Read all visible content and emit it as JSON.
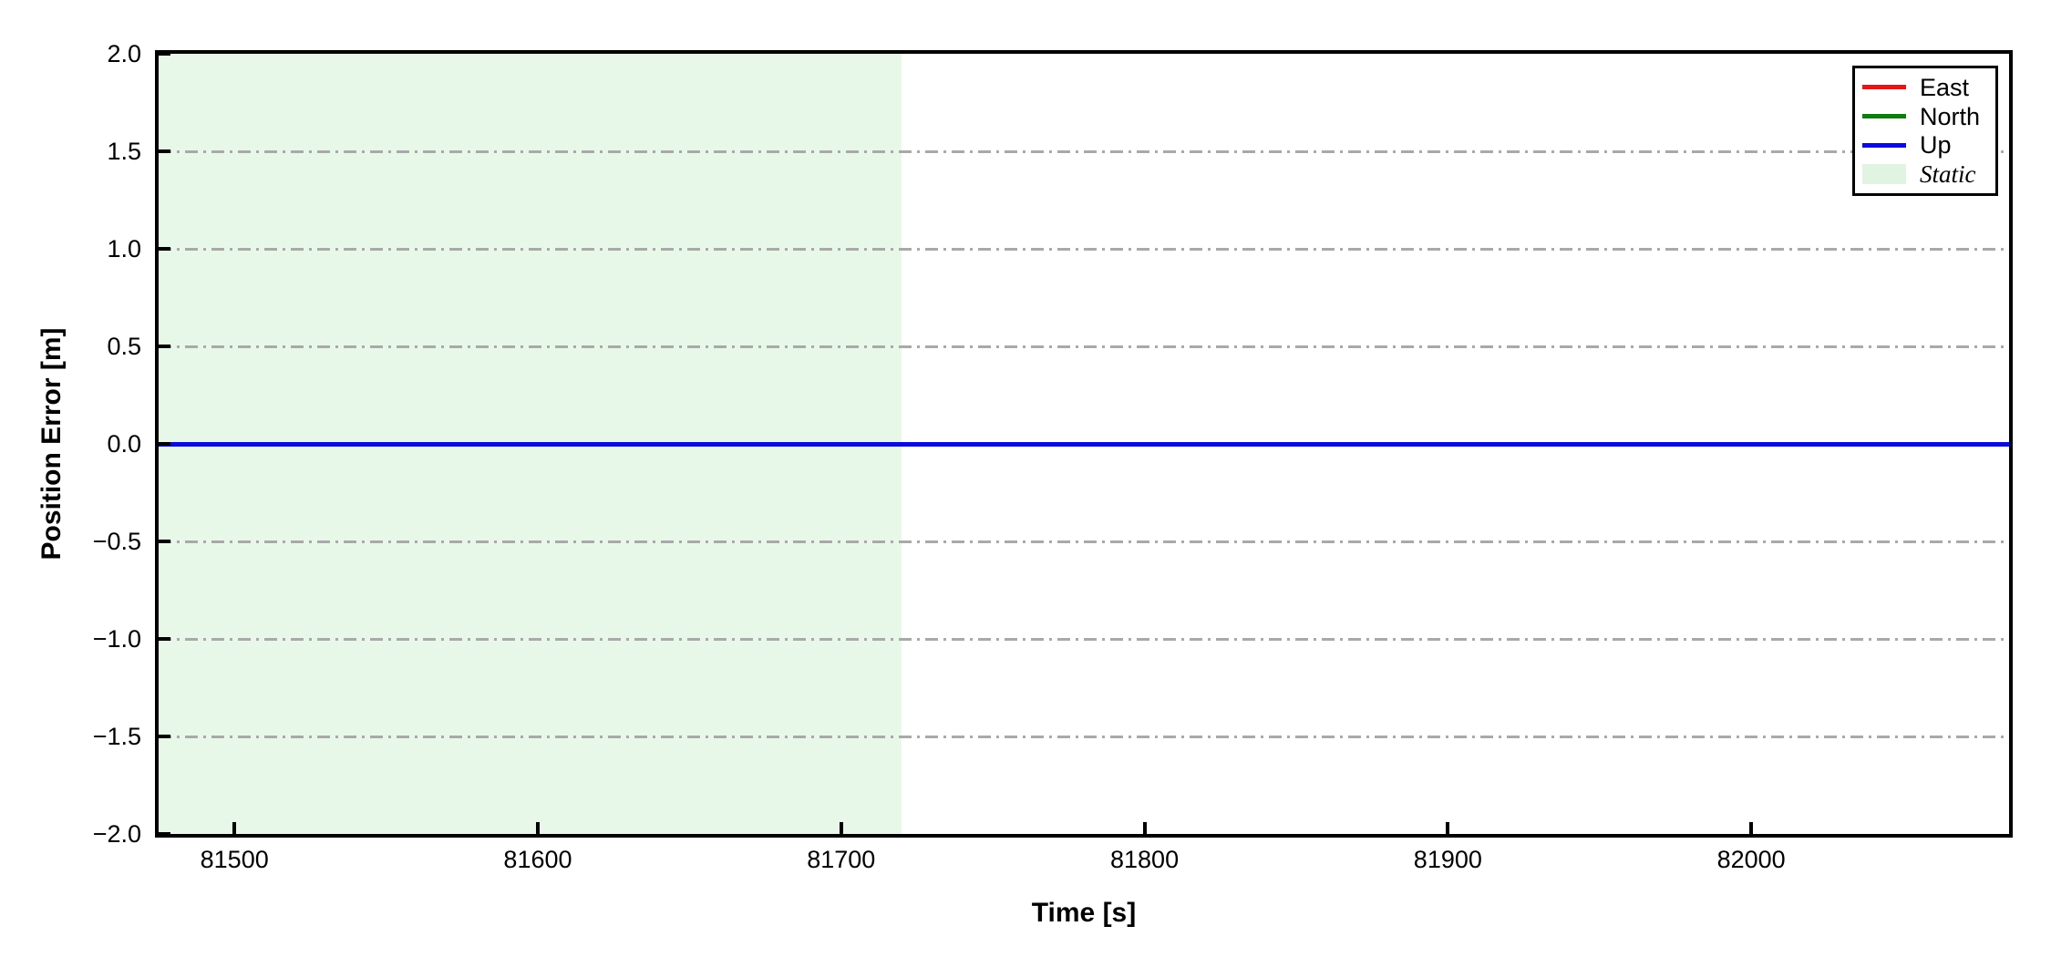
{
  "chart_data": {
    "type": "line",
    "title": "",
    "xlabel": "Time [s]",
    "ylabel": "Position Error [m]",
    "xlim": [
      81475,
      82085
    ],
    "ylim": [
      -2.0,
      2.0
    ],
    "xticks": [
      81500,
      81600,
      81700,
      81800,
      81900,
      82000
    ],
    "xtick_labels": [
      "81500",
      "81600",
      "81700",
      "81800",
      "81900",
      "82000"
    ],
    "yticks": [
      2.0,
      1.5,
      1.0,
      0.5,
      0.0,
      -0.5,
      -1.0,
      -1.5,
      -2.0
    ],
    "ytick_labels": [
      "2.0",
      "1.5",
      "1.0",
      "0.5",
      "0.0",
      "−0.5",
      "−1.0",
      "−1.5",
      "−2.0"
    ],
    "grid": "horizontal, dash-dot, every 0.5, color #a9a9a9",
    "legend_position": "upper right",
    "series": [
      {
        "name": "East",
        "color": "#e51616",
        "x": [
          81475,
          82085
        ],
        "values": [
          0.0,
          0.0
        ]
      },
      {
        "name": "North",
        "color": "#0e7c0e",
        "x": [
          81475,
          82085
        ],
        "values": [
          0.0,
          0.0
        ]
      },
      {
        "name": "Up",
        "color": "#0b0bdd",
        "x": [
          81475,
          82085
        ],
        "values": [
          0.0,
          0.0
        ]
      }
    ],
    "regions": [
      {
        "name": "Static",
        "color": "#e8f8e8",
        "x_start": 81475,
        "x_end": 81720
      }
    ]
  },
  "legend": {
    "items": [
      {
        "label": "East",
        "type": "line",
        "color": "#e51616"
      },
      {
        "label": "North",
        "type": "line",
        "color": "#0e7c0e"
      },
      {
        "label": "Up",
        "type": "line",
        "color": "#0b0bdd"
      },
      {
        "label": "Static",
        "type": "patch",
        "color": "#e1f3e1"
      }
    ]
  },
  "colors": {
    "background": "#ffffff",
    "spine": "#000000",
    "grid": "#a9a9a9",
    "static_fill": "#e8f8e8"
  }
}
